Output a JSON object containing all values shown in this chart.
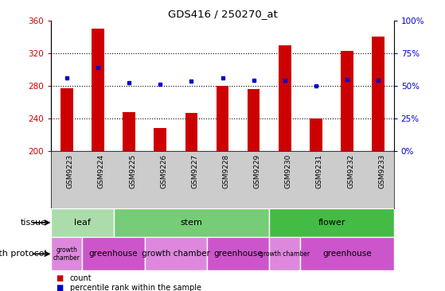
{
  "title": "GDS416 / 250270_at",
  "samples": [
    "GSM9223",
    "GSM9224",
    "GSM9225",
    "GSM9226",
    "GSM9227",
    "GSM9228",
    "GSM9229",
    "GSM9230",
    "GSM9231",
    "GSM9232",
    "GSM9233"
  ],
  "counts": [
    277,
    350,
    248,
    228,
    247,
    280,
    276,
    330,
    240,
    323,
    340
  ],
  "dot_left_vals": [
    290,
    302,
    284,
    282,
    286,
    290,
    287,
    287,
    280,
    288,
    287
  ],
  "ymin": 200,
  "ymax": 360,
  "yticks": [
    200,
    240,
    280,
    320,
    360
  ],
  "right_yticks": [
    0,
    25,
    50,
    75,
    100
  ],
  "bar_color": "#cc0000",
  "dot_color": "#0000cc",
  "gridlines": [
    240,
    280,
    320
  ],
  "tissue_groups": [
    {
      "label": "leaf",
      "start": 0,
      "end": 2,
      "color": "#aaddaa"
    },
    {
      "label": "stem",
      "start": 2,
      "end": 7,
      "color": "#77cc77"
    },
    {
      "label": "flower",
      "start": 7,
      "end": 11,
      "color": "#44bb44"
    }
  ],
  "protocol_groups": [
    {
      "label": "growth\nchamber",
      "start": 0,
      "end": 1,
      "color": "#dd88dd"
    },
    {
      "label": "greenhouse",
      "start": 1,
      "end": 3,
      "color": "#cc55cc"
    },
    {
      "label": "growth chamber",
      "start": 3,
      "end": 5,
      "color": "#dd88dd"
    },
    {
      "label": "greenhouse",
      "start": 5,
      "end": 7,
      "color": "#cc55cc"
    },
    {
      "label": "growth chamber",
      "start": 7,
      "end": 8,
      "color": "#dd88dd"
    },
    {
      "label": "greenhouse",
      "start": 8,
      "end": 11,
      "color": "#cc55cc"
    }
  ],
  "tissue_label": "tissue",
  "protocol_label": "growth protocol",
  "legend_count_label": "count",
  "legend_pct_label": "percentile rank within the sample",
  "tick_color_left": "#cc0000",
  "tick_color_right": "#0000cc",
  "sample_bg_color": "#cccccc",
  "bar_width": 0.4
}
